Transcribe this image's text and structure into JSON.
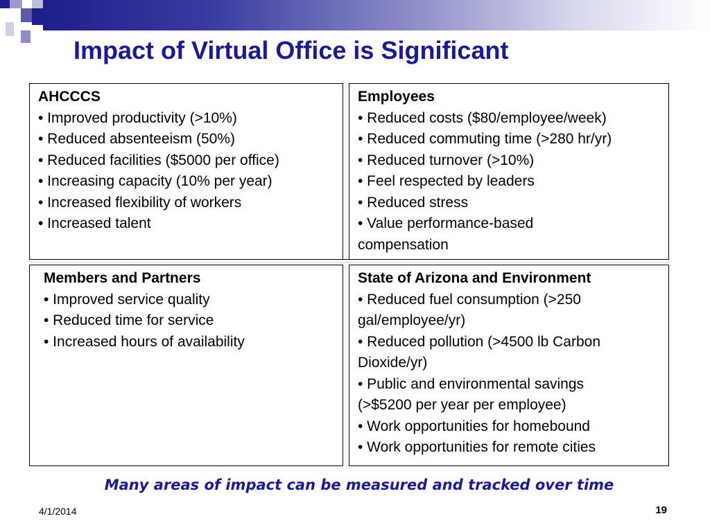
{
  "slide": {
    "title": "Impact of Virtual Office is Significant",
    "footer_note": "Many areas of impact can be measured and tracked over time",
    "date": "4/1/2014",
    "page_number": "19"
  },
  "quadrants": {
    "ahcccs": {
      "heading": "AHCCCS",
      "lines": [
        "• Improved productivity (>10%)",
        "• Reduced absenteeism (50%)",
        "• Reduced facilities ($5000 per office)",
        "• Increasing capacity (10% per year)",
        "• Increased flexibility of workers",
        "• Increased talent"
      ]
    },
    "employees": {
      "heading": "Employees",
      "lines": [
        "• Reduced costs ($80/employee/week)",
        "• Reduced commuting time (>280 hr/yr)",
        "• Reduced turnover (>10%)",
        "• Feel respected by leaders",
        "• Reduced stress",
        "• Value performance-based",
        "compensation"
      ]
    },
    "members": {
      "heading": "Members and Partners",
      "lines": [
        "• Improved service quality",
        "• Reduced time for service",
        "• Increased hours of availability"
      ]
    },
    "arizona": {
      "heading": "State of Arizona and Environment",
      "lines": [
        "• Reduced fuel consumption (>250",
        "gal/employee/yr)",
        "• Reduced pollution (>4500 lb Carbon",
        "Dioxide/yr)",
        "• Public and environmental savings",
        "(>$5200 per year per employee)",
        "• Work opportunities for homebound",
        "• Work opportunities for remote cities"
      ]
    }
  },
  "colors": {
    "title": "#1a1a99",
    "header_dark": "#1f1f8c",
    "header_light": "#8c8cc8"
  }
}
